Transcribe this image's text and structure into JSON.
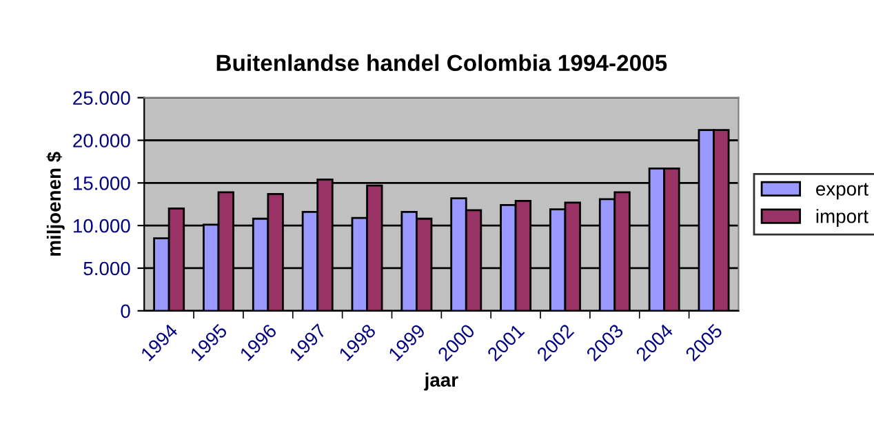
{
  "chart_data": {
    "type": "bar",
    "title": "Buitenlandse handel Colombia 1994-2005",
    "xlabel": "jaar",
    "ylabel": "miljoenen $",
    "categories": [
      "1994",
      "1995",
      "1996",
      "1997",
      "1998",
      "1999",
      "2000",
      "2001",
      "2002",
      "2003",
      "2004",
      "2005"
    ],
    "series": [
      {
        "name": "export",
        "color": "#9999ff",
        "values": [
          8500,
          10100,
          10800,
          11600,
          10900,
          11600,
          13200,
          12400,
          11900,
          13100,
          16700,
          21200
        ]
      },
      {
        "name": "import",
        "color": "#993366",
        "values": [
          12000,
          13900,
          13700,
          15400,
          14700,
          10800,
          11800,
          12900,
          12700,
          13900,
          16700,
          21200
        ]
      }
    ],
    "ylim": [
      0,
      25000
    ],
    "yticks": [
      {
        "value": 0,
        "label": "0"
      },
      {
        "value": 5000,
        "label": "5.000"
      },
      {
        "value": 10000,
        "label": "10.000"
      },
      {
        "value": 15000,
        "label": "15.000"
      },
      {
        "value": 20000,
        "label": "20.000"
      },
      {
        "value": 25000,
        "label": "25.000"
      }
    ],
    "grid": "y",
    "legend": "right"
  }
}
